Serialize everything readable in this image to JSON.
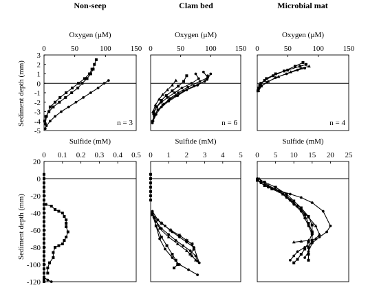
{
  "columns": [
    "Non-seep",
    "Clam bed",
    "Microbial mat"
  ],
  "row_labels": {
    "oxygen_y": "Sediment depth (mm)",
    "sulfide_y": "Sediment depth (mm)"
  },
  "chart_data": [
    {
      "type": "line",
      "panel": "oxygen-nonseep",
      "title": "Non-seep",
      "xlabel": "Oxygen (µM)",
      "ylabel": "Sediment depth (mm)",
      "xlim": [
        0,
        150
      ],
      "ylim": [
        -5,
        3
      ],
      "xticks": [
        0,
        50,
        100,
        150
      ],
      "yticks": [
        3,
        2,
        1,
        0,
        -1,
        -2,
        -3,
        -4,
        -5
      ],
      "xaxis_position": "top",
      "annotation": "n = 3",
      "series": [
        {
          "marker": "square",
          "x": [
            85,
            82,
            80,
            76,
            70,
            62,
            55,
            45,
            35,
            25,
            15,
            8,
            3,
            1
          ],
          "y": [
            2.5,
            2,
            1.5,
            1,
            0.5,
            0,
            -0.5,
            -1,
            -1.5,
            -2,
            -2.5,
            -3,
            -3.5,
            -4
          ]
        },
        {
          "marker": "square",
          "x": [
            78,
            74,
            66,
            56,
            46,
            36,
            26,
            18,
            10,
            4,
            2
          ],
          "y": [
            1.5,
            1,
            0.5,
            0,
            -0.5,
            -1,
            -1.5,
            -2,
            -2.5,
            -3.5,
            -4.3
          ]
        },
        {
          "marker": "dot",
          "x": [
            105,
            98,
            88,
            76,
            64,
            52,
            40,
            28,
            18,
            10,
            4,
            2
          ],
          "y": [
            0.3,
            0,
            -0.5,
            -1,
            -1.5,
            -2,
            -2.5,
            -3,
            -3.5,
            -4,
            -4.5,
            -4.8
          ]
        }
      ]
    },
    {
      "type": "line",
      "panel": "oxygen-clambed",
      "title": "Clam bed",
      "xlabel": "Oxygen (µM)",
      "ylabel": "",
      "xlim": [
        0,
        150
      ],
      "ylim": [
        -5,
        3
      ],
      "xticks": [
        0,
        50,
        100,
        150
      ],
      "xaxis_position": "top",
      "annotation": "n = 6",
      "series": [
        {
          "marker": "dot",
          "x": [
            95,
            90,
            72,
            55,
            42,
            30,
            20,
            12,
            6,
            3
          ],
          "y": [
            0.8,
            0.2,
            -0.3,
            -0.8,
            -1.3,
            -1.8,
            -2.3,
            -2.8,
            -3.5,
            -4.2
          ]
        },
        {
          "marker": "dot",
          "x": [
            75,
            80,
            68,
            52,
            40,
            28,
            18,
            10,
            5
          ],
          "y": [
            1,
            0.5,
            0,
            -0.5,
            -1,
            -1.5,
            -2,
            -2.5,
            -3
          ]
        },
        {
          "marker": "dot",
          "x": [
            88,
            95,
            82,
            62,
            46,
            32,
            22,
            12,
            6,
            3
          ],
          "y": [
            1.2,
            0.6,
            0.2,
            -0.4,
            -1,
            -1.6,
            -2.2,
            -2.8,
            -3.4,
            -4
          ]
        },
        {
          "marker": "square",
          "x": [
            60,
            55,
            46,
            36,
            26,
            18,
            10,
            5
          ],
          "y": [
            0.8,
            0.2,
            -0.3,
            -0.8,
            -1.3,
            -1.8,
            -2.5,
            -3.2
          ]
        },
        {
          "marker": "triangle",
          "x": [
            42,
            36,
            28,
            20,
            14,
            8,
            4
          ],
          "y": [
            0.3,
            -0.2,
            -0.7,
            -1.2,
            -1.7,
            -2.3,
            -3
          ]
        },
        {
          "marker": "dot",
          "x": [
            100,
            94,
            78,
            60,
            45,
            30,
            18,
            9,
            4
          ],
          "y": [
            1,
            0.4,
            -0.2,
            -0.7,
            -1.3,
            -1.9,
            -2.5,
            -3.3,
            -4
          ]
        }
      ]
    },
    {
      "type": "line",
      "panel": "oxygen-mat",
      "title": "Microbial mat",
      "xlabel": "Oxygen (µM)",
      "ylabel": "",
      "xlim": [
        0,
        150
      ],
      "ylim": [
        -5,
        3
      ],
      "xticks": [
        0,
        50,
        100,
        150
      ],
      "xaxis_position": "top",
      "annotation": "n = 4",
      "series": [
        {
          "marker": "square",
          "x": [
            80,
            70,
            50,
            30,
            15,
            6,
            2
          ],
          "y": [
            2,
            1.8,
            1.4,
            1,
            0.5,
            0,
            -0.5
          ]
        },
        {
          "marker": "square",
          "x": [
            75,
            62,
            44,
            26,
            12,
            4,
            1
          ],
          "y": [
            2.2,
            1.8,
            1.3,
            0.8,
            0.3,
            -0.2,
            -0.8
          ]
        },
        {
          "marker": "triangle",
          "x": [
            85,
            72,
            55,
            35,
            18,
            7,
            2
          ],
          "y": [
            1.8,
            1.6,
            1.2,
            0.7,
            0.2,
            -0.3,
            -0.8
          ]
        },
        {
          "marker": "dot",
          "x": [
            78,
            66,
            48,
            30,
            16,
            6,
            2
          ],
          "y": [
            1.6,
            1.4,
            1,
            0.6,
            0.1,
            -0.3,
            -0.7
          ]
        }
      ]
    },
    {
      "type": "line",
      "panel": "sulfide-nonseep",
      "title": "",
      "xlabel": "Sulfide (mM)",
      "ylabel": "Sediment depth (mm)",
      "xlim": [
        0,
        0.5
      ],
      "ylim": [
        -120,
        20
      ],
      "xticks": [
        0,
        0.1,
        0.2,
        0.3,
        0.4,
        0.5
      ],
      "yticks": [
        20,
        0,
        -20,
        -40,
        -60,
        -80,
        -100,
        -120
      ],
      "xaxis_position": "top",
      "series": [
        {
          "marker": "square",
          "x": [
            0,
            0,
            0,
            0,
            0,
            0,
            0,
            0,
            0,
            0,
            0,
            0,
            0,
            0,
            0,
            0,
            0,
            0,
            0,
            0,
            0,
            0,
            0,
            0,
            0,
            0,
            0
          ],
          "y": [
            5,
            0,
            -5,
            -10,
            -15,
            -20,
            -25,
            -30,
            -35,
            -40,
            -45,
            -50,
            -55,
            -60,
            -65,
            -70,
            -75,
            -80,
            -85,
            -90,
            -95,
            -100,
            -105,
            -110,
            -115,
            -118,
            -120
          ]
        },
        {
          "marker": "square",
          "x": [
            0.01,
            0.04,
            0.06,
            0.08,
            0.1,
            0.11,
            0.12,
            0.12,
            0.12,
            0.13,
            0.12,
            0.11,
            0.1,
            0.08,
            0.06,
            0.05,
            0.05,
            0.03,
            0.02,
            0.02
          ],
          "y": [
            -30,
            -32,
            -36,
            -38,
            -40,
            -44,
            -48,
            -52,
            -56,
            -62,
            -68,
            -72,
            -76,
            -78,
            -80,
            -86,
            -92,
            -98,
            -104,
            -110
          ]
        },
        {
          "marker": "dot",
          "x": [
            0,
            0.02,
            0.04
          ],
          "y": [
            -115,
            -118,
            -120
          ]
        }
      ]
    },
    {
      "type": "line",
      "panel": "sulfide-clambed",
      "title": "",
      "xlabel": "Sulfide (mM)",
      "ylabel": "",
      "xlim": [
        0,
        5
      ],
      "ylim": [
        -120,
        20
      ],
      "xticks": [
        0,
        1,
        2,
        3,
        4,
        5
      ],
      "xaxis_position": "top",
      "series": [
        {
          "marker": "square",
          "x": [
            0,
            0,
            0,
            0,
            0,
            0,
            0
          ],
          "y": [
            5,
            0,
            -5,
            -10,
            -15,
            -20,
            -25
          ]
        },
        {
          "marker": "dot",
          "x": [
            0.1,
            0.3,
            0.6,
            1,
            1.4,
            1.8,
            2.2,
            2.5,
            2.6
          ],
          "y": [
            -40,
            -50,
            -58,
            -65,
            -72,
            -78,
            -84,
            -90,
            -96
          ]
        },
        {
          "marker": "dot",
          "x": [
            0.1,
            0.4,
            0.8,
            1.2,
            1.6,
            2,
            2.4,
            2.7
          ],
          "y": [
            -38,
            -48,
            -55,
            -62,
            -68,
            -74,
            -80,
            -98
          ]
        },
        {
          "marker": "star",
          "x": [
            0.2,
            0.6,
            1.1,
            1.6,
            2,
            2.3,
            2.4,
            2.2
          ],
          "y": [
            -45,
            -52,
            -60,
            -66,
            -72,
            -76,
            -82,
            -88
          ]
        },
        {
          "marker": "square",
          "x": [
            0.1,
            0.3,
            0.6,
            0.9,
            1.2,
            1.4,
            1.5,
            1.3
          ],
          "y": [
            -42,
            -55,
            -68,
            -78,
            -88,
            -95,
            -100,
            -104
          ]
        },
        {
          "marker": "dot",
          "x": [
            0.1,
            0.3,
            0.5,
            0.8,
            1.2,
            1.6,
            2.1,
            2.6
          ],
          "y": [
            -40,
            -55,
            -70,
            -82,
            -92,
            -100,
            -106,
            -112
          ]
        },
        {
          "marker": "triangle",
          "x": [
            0.2,
            0.5,
            1,
            1.5,
            2,
            2.3,
            2.5
          ],
          "y": [
            -45,
            -58,
            -68,
            -76,
            -84,
            -90,
            -95
          ]
        }
      ]
    },
    {
      "type": "line",
      "panel": "sulfide-mat",
      "title": "",
      "xlabel": "Sulfide (mM)",
      "ylabel": "",
      "xlim": [
        0,
        25
      ],
      "ylim": [
        -120,
        20
      ],
      "xticks": [
        0,
        5,
        10,
        15,
        20,
        25
      ],
      "xaxis_position": "top",
      "series": [
        {
          "marker": "dot",
          "x": [
            0,
            1,
            3,
            6,
            9,
            12,
            15,
            18,
            20,
            19,
            17,
            15,
            13,
            11,
            10,
            9
          ],
          "y": [
            0,
            -5,
            -10,
            -14,
            -18,
            -22,
            -28,
            -38,
            -55,
            -62,
            -68,
            -75,
            -80,
            -85,
            -90,
            -95
          ]
        },
        {
          "marker": "square",
          "x": [
            0,
            2,
            4,
            7,
            9,
            11,
            13,
            14,
            15,
            15,
            14,
            14,
            14
          ],
          "y": [
            -2,
            -8,
            -12,
            -18,
            -25,
            -32,
            -42,
            -52,
            -62,
            -72,
            -80,
            -88,
            -95
          ]
        },
        {
          "marker": "dot",
          "x": [
            1,
            3,
            6,
            8,
            10,
            12,
            13,
            14,
            15,
            15,
            14,
            13
          ],
          "y": [
            -3,
            -9,
            -15,
            -22,
            -30,
            -38,
            -46,
            -55,
            -65,
            -75,
            -85,
            -92
          ]
        },
        {
          "marker": "triangle",
          "x": [
            0.5,
            3,
            6,
            8,
            10,
            12,
            14,
            16,
            17,
            16,
            14,
            12,
            10
          ],
          "y": [
            0,
            -8,
            -14,
            -20,
            -28,
            -36,
            -45,
            -55,
            -65,
            -70,
            -72,
            -73,
            -74
          ]
        },
        {
          "marker": "square",
          "x": [
            2,
            5,
            8,
            10,
            12,
            14,
            15,
            15,
            14,
            13,
            12,
            11,
            10
          ],
          "y": [
            -4,
            -10,
            -18,
            -26,
            -34,
            -44,
            -54,
            -64,
            -74,
            -82,
            -88,
            -94,
            -98
          ]
        }
      ]
    }
  ]
}
